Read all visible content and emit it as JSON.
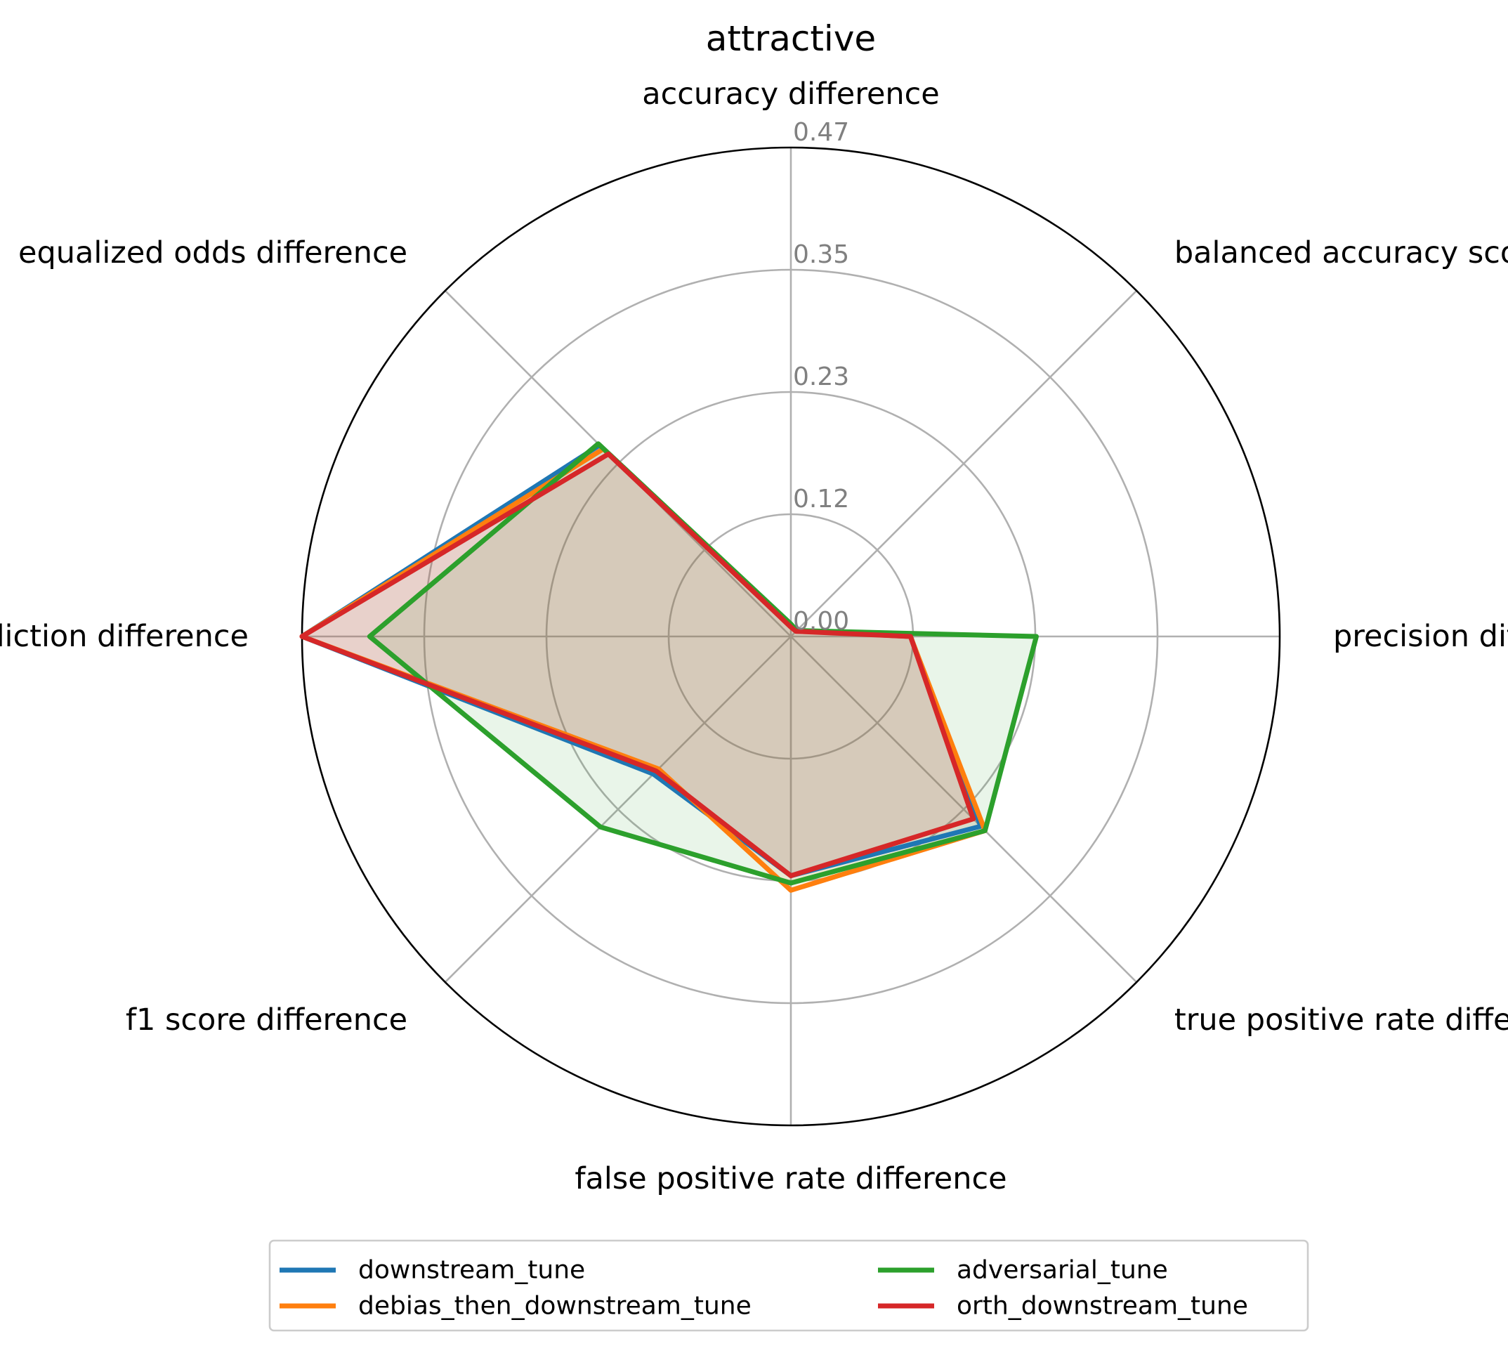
{
  "chart_data": {
    "type": "radar",
    "title": "attractive",
    "axes": [
      "accuracy difference",
      "balanced accuracy score difference",
      "precision difference",
      "true positive rate difference",
      "false positive rate difference",
      "f1 score difference",
      "mean prediction difference",
      "equalized odds difference"
    ],
    "rticks": [
      "0.00",
      "0.12",
      "0.23",
      "0.35",
      "0.47"
    ],
    "rlim": [
      0,
      0.47
    ],
    "series": [
      {
        "name": "downstream_tune",
        "color": "#1f77b4",
        "values": [
          0.011,
          0.008,
          0.115,
          0.258,
          0.23,
          0.187,
          0.47,
          0.26
        ]
      },
      {
        "name": "debias_then_downstream_tune",
        "color": "#ff7f0e",
        "values": [
          0.01,
          0.008,
          0.115,
          0.264,
          0.244,
          0.18,
          0.47,
          0.255
        ]
      },
      {
        "name": "adversarial_tune",
        "color": "#2ca02c",
        "values": [
          0.012,
          0.008,
          0.236,
          0.264,
          0.237,
          0.259,
          0.405,
          0.262
        ]
      },
      {
        "name": "orth_downstream_tune",
        "color": "#d62728",
        "values": [
          0.009,
          0.007,
          0.115,
          0.248,
          0.23,
          0.183,
          0.47,
          0.248
        ]
      }
    ],
    "legend_position": "bottom-center",
    "legend_columns": 2
  }
}
